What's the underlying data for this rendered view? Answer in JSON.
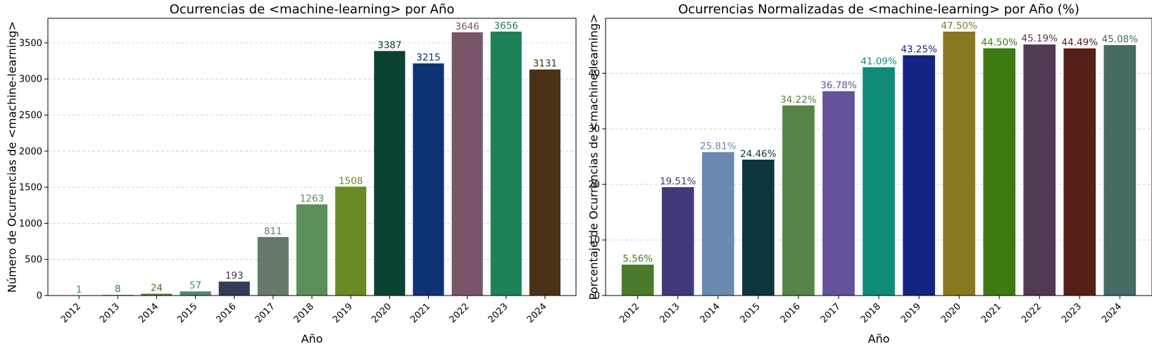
{
  "chart_data": [
    {
      "type": "bar",
      "title": "Ocurrencias de <machine-learning> por Año",
      "xlabel": "Año",
      "ylabel": "Número de Ocurrencias de <machine-learning>",
      "categories": [
        "2012",
        "2013",
        "2014",
        "2015",
        "2016",
        "2017",
        "2018",
        "2019",
        "2020",
        "2021",
        "2022",
        "2023",
        "2024"
      ],
      "values": [
        1,
        8,
        24,
        57,
        193,
        811,
        1263,
        1508,
        3387,
        3215,
        3646,
        3656,
        3131
      ],
      "value_labels": [
        "1",
        "8",
        "24",
        "57",
        "193",
        "811",
        "1263",
        "1508",
        "3387",
        "3215",
        "3646",
        "3656",
        "3131"
      ],
      "colors": [
        "#3e8f6a",
        "#2f7d3a",
        "#4f7a1f",
        "#4f8a6e",
        "#343a5a",
        "#67796b",
        "#5a8f5a",
        "#6a8a24",
        "#0c4234",
        "#0e3372",
        "#7a5468",
        "#1e8257",
        "#4a3216"
      ],
      "ylim": [
        0,
        3840
      ],
      "yticks": [
        0,
        500,
        1000,
        1500,
        2000,
        2500,
        3000,
        3500
      ],
      "grid": true
    },
    {
      "type": "bar",
      "title": "Ocurrencias Normalizadas de <machine-learning> por Año (%)",
      "xlabel": "Año",
      "ylabel": "Porcentaje de Ocurrencias de <machine-learning>",
      "categories": [
        "2012",
        "2013",
        "2014",
        "2015",
        "2016",
        "2017",
        "2018",
        "2019",
        "2020",
        "2021",
        "2022",
        "2023",
        "2024"
      ],
      "values": [
        5.56,
        19.51,
        25.81,
        24.46,
        34.22,
        36.78,
        41.09,
        43.25,
        47.5,
        44.5,
        45.19,
        44.49,
        45.08
      ],
      "value_labels": [
        "5.56%",
        "19.51%",
        "25.81%",
        "24.46%",
        "34.22%",
        "36.78%",
        "41.09%",
        "43.25%",
        "47.50%",
        "44.50%",
        "45.19%",
        "44.49%",
        "45.08%"
      ],
      "colors": [
        "#4a7a2a",
        "#413a7a",
        "#6a8ab2",
        "#0e353e",
        "#578547",
        "#64529a",
        "#0e8c78",
        "#142282",
        "#88781e",
        "#3d7a12",
        "#523a52",
        "#562016",
        "#466a64"
      ],
      "ylim": [
        0,
        49.9
      ],
      "yticks": [
        0,
        10,
        20,
        30,
        40
      ],
      "grid": true
    }
  ]
}
